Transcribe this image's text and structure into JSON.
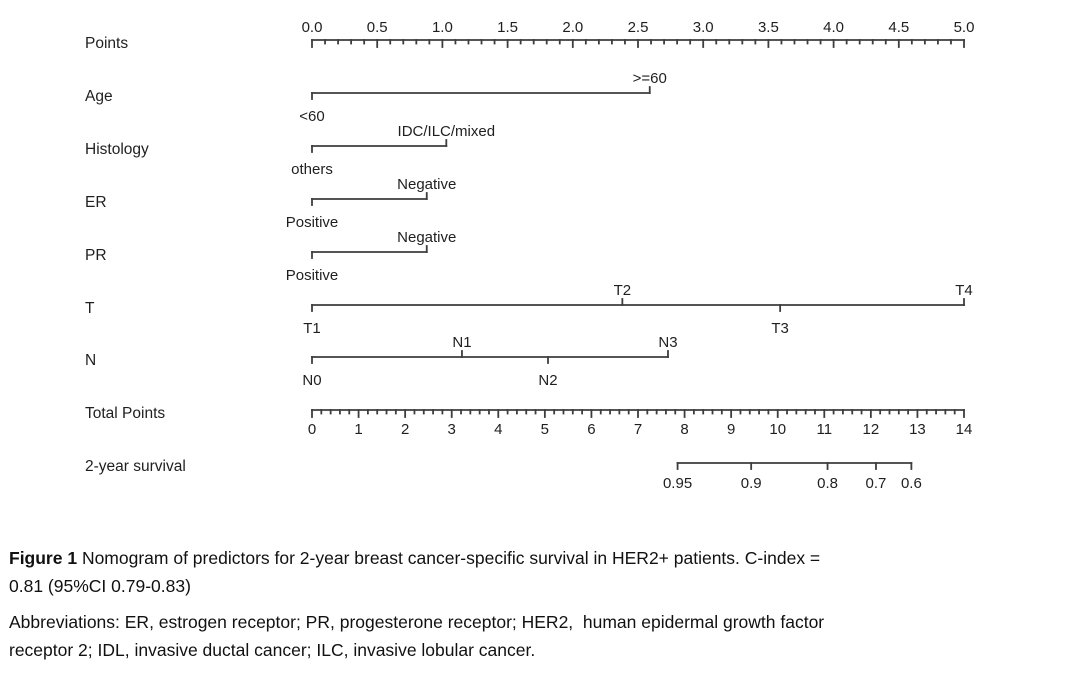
{
  "chart_data": {
    "type": "nomogram",
    "points_range": [
      0,
      5
    ],
    "total_points_range": [
      0,
      14
    ],
    "rows": [
      {
        "id": "points",
        "label": "Points",
        "kind": "ruler",
        "scale": "points",
        "min": 0,
        "max": 5,
        "major": 0.5,
        "minor": 0.1,
        "decimals": 1,
        "label_side": "above",
        "tick_labels": [
          "0.0",
          "0.5",
          "1.0",
          "1.5",
          "2.0",
          "2.5",
          "3.0",
          "3.5",
          "4.0",
          "4.5",
          "5.0"
        ]
      },
      {
        "id": "age",
        "label": "Age",
        "kind": "factor",
        "scale": "points",
        "levels": [
          {
            "text": "<60",
            "value": 0,
            "side": "below"
          },
          {
            "text": ">=60",
            "value": 2.59,
            "side": "above"
          }
        ]
      },
      {
        "id": "histology",
        "label": "Histology",
        "kind": "factor",
        "scale": "points",
        "levels": [
          {
            "text": "others",
            "value": 0,
            "side": "below"
          },
          {
            "text": "IDC/ILC/mixed",
            "value": 1.03,
            "side": "above"
          }
        ]
      },
      {
        "id": "er",
        "label": "ER",
        "kind": "factor",
        "scale": "points",
        "levels": [
          {
            "text": "Positive",
            "value": 0,
            "side": "below"
          },
          {
            "text": "Negative",
            "value": 0.88,
            "side": "above"
          }
        ]
      },
      {
        "id": "pr",
        "label": "PR",
        "kind": "factor",
        "scale": "points",
        "levels": [
          {
            "text": "Positive",
            "value": 0,
            "side": "below"
          },
          {
            "text": "Negative",
            "value": 0.88,
            "side": "above"
          }
        ]
      },
      {
        "id": "t",
        "label": "T",
        "kind": "factor",
        "scale": "points",
        "levels": [
          {
            "text": "T1",
            "value": 0,
            "side": "below"
          },
          {
            "text": "T2",
            "value": 2.38,
            "side": "above"
          },
          {
            "text": "T3",
            "value": 3.59,
            "side": "below"
          },
          {
            "text": "T4",
            "value": 5.0,
            "side": "above"
          }
        ]
      },
      {
        "id": "n",
        "label": "N",
        "kind": "factor",
        "scale": "points",
        "levels": [
          {
            "text": "N0",
            "value": 0,
            "side": "below"
          },
          {
            "text": "N1",
            "value": 1.15,
            "side": "above"
          },
          {
            "text": "N2",
            "value": 1.81,
            "side": "below"
          },
          {
            "text": "N3",
            "value": 2.73,
            "side": "above"
          }
        ]
      },
      {
        "id": "total-points",
        "label": "Total Points",
        "kind": "ruler",
        "scale": "total",
        "min": 0,
        "max": 14,
        "major": 1,
        "minor": 0.2,
        "decimals": 0,
        "label_side": "below",
        "tick_labels": [
          "0",
          "1",
          "2",
          "3",
          "4",
          "5",
          "6",
          "7",
          "8",
          "9",
          "10",
          "11",
          "12",
          "13",
          "14"
        ]
      },
      {
        "id": "survival",
        "label": "2-year survival",
        "kind": "marked",
        "scale": "total",
        "label_side": "below",
        "ticks": [
          {
            "text": "0.95",
            "value": 7.85
          },
          {
            "text": "0.9",
            "value": 9.43
          },
          {
            "text": "0.8",
            "value": 11.07
          },
          {
            "text": "0.7",
            "value": 12.11
          },
          {
            "text": "0.6",
            "value": 12.87
          }
        ]
      }
    ]
  },
  "caption": {
    "figure_label": "Figure 1",
    "line1_rest": " Nomogram of predictors for 2-year breast cancer-specific survival in HER2+ patients. C-index =",
    "line2": "0.81 (95%CI 0.79-0.83)",
    "abbrev_line1": "Abbreviations: ER, estrogen receptor; PR, progesterone receptor; HER2,  human epidermal growth factor",
    "abbrev_line2": "receptor 2; IDL, invasive ductal cancer; ILC, invasive lobular cancer."
  }
}
